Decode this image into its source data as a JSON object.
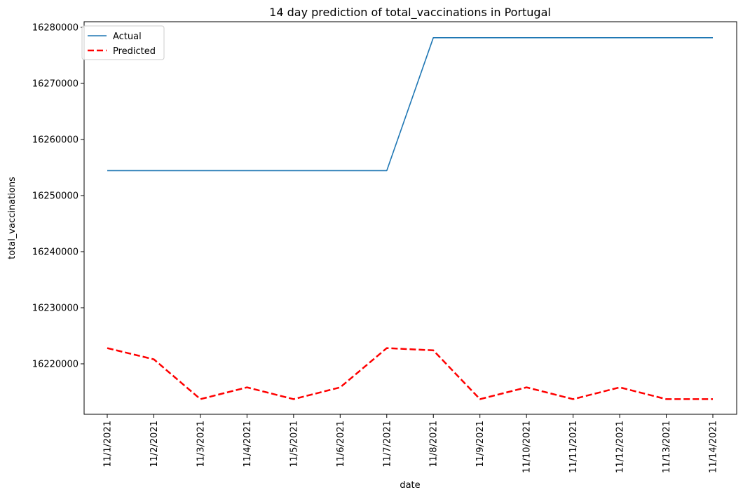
{
  "chart_data": {
    "type": "line",
    "title": "14 day prediction of total_vaccinations in Portugal",
    "xlabel": "date",
    "ylabel": "total_vaccinations",
    "categories": [
      "11/1/2021",
      "11/2/2021",
      "11/3/2021",
      "11/4/2021",
      "11/5/2021",
      "11/6/2021",
      "11/7/2021",
      "11/8/2021",
      "11/9/2021",
      "11/10/2021",
      "11/11/2021",
      "11/12/2021",
      "11/13/2021",
      "11/14/2021"
    ],
    "ylim": [
      16211000,
      16281000
    ],
    "yticks": [
      16220000,
      16230000,
      16240000,
      16250000,
      16260000,
      16270000,
      16280000
    ],
    "grid": false,
    "legend_position": "top-left",
    "series": [
      {
        "name": "Actual",
        "color": "#1f77b4",
        "style": "solid",
        "values": [
          16254450,
          16254450,
          16254450,
          16254450,
          16254450,
          16254450,
          16254450,
          16278150,
          16278150,
          16278150,
          16278150,
          16278150,
          16278150,
          16278150
        ]
      },
      {
        "name": "Predicted",
        "color": "#ff0000",
        "style": "dashed",
        "values": [
          16222800,
          16220800,
          16213700,
          16215800,
          16213700,
          16215800,
          16222800,
          16222400,
          16213700,
          16215800,
          16213700,
          16215800,
          16213700,
          16213700
        ]
      }
    ]
  }
}
